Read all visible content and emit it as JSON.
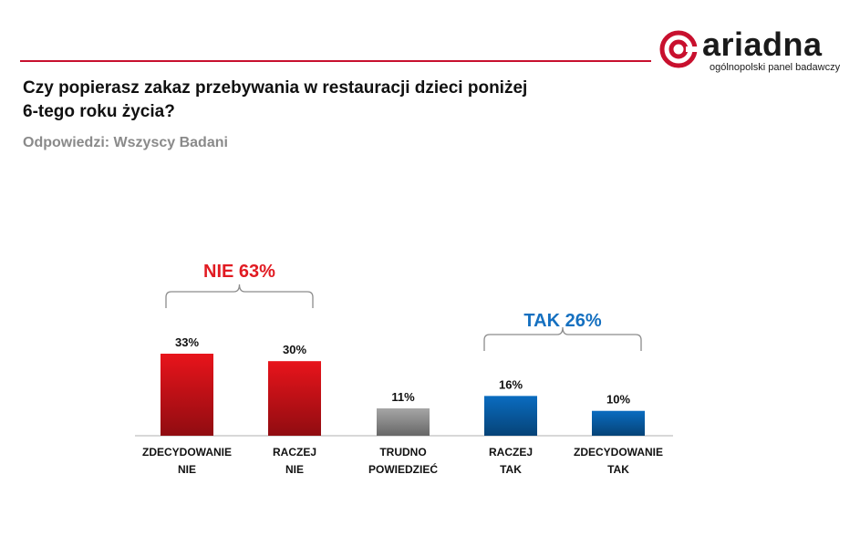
{
  "brand": {
    "name": "ariadna",
    "tagline": "ogólnopolski panel badawczy",
    "color": "#c8102e"
  },
  "question": {
    "line1": "Czy popierasz zakaz przebywania w restauracji dzieci poniżej",
    "line2": "6-tego roku życia?"
  },
  "subtitle": "Odpowiedzi: Wszyscy Badani",
  "chart_data": {
    "type": "bar",
    "categories": [
      [
        "ZDECYDOWANIE",
        "NIE"
      ],
      [
        "RACZEJ",
        "NIE"
      ],
      [
        "TRUDNO",
        "POWIEDZIEĆ"
      ],
      [
        "RACZEJ",
        "TAK"
      ],
      [
        "ZDECYDOWANIE",
        "TAK"
      ]
    ],
    "values": [
      33,
      30,
      11,
      16,
      10
    ],
    "value_labels": [
      "33%",
      "30%",
      "11%",
      "16%",
      "10%"
    ],
    "colors": [
      "#e8141b",
      "#e8141b",
      "#a6a6a6",
      "#0a6cc0",
      "#0a6cc0"
    ],
    "groups": [
      {
        "label": "NIE 63%",
        "color": "#e11b22",
        "from": 0,
        "to": 1
      },
      {
        "label": "TAK 26%",
        "color": "#1570c0",
        "from": 3,
        "to": 4
      }
    ],
    "ylim": [
      0,
      33
    ],
    "grid": false,
    "legend": "none"
  }
}
